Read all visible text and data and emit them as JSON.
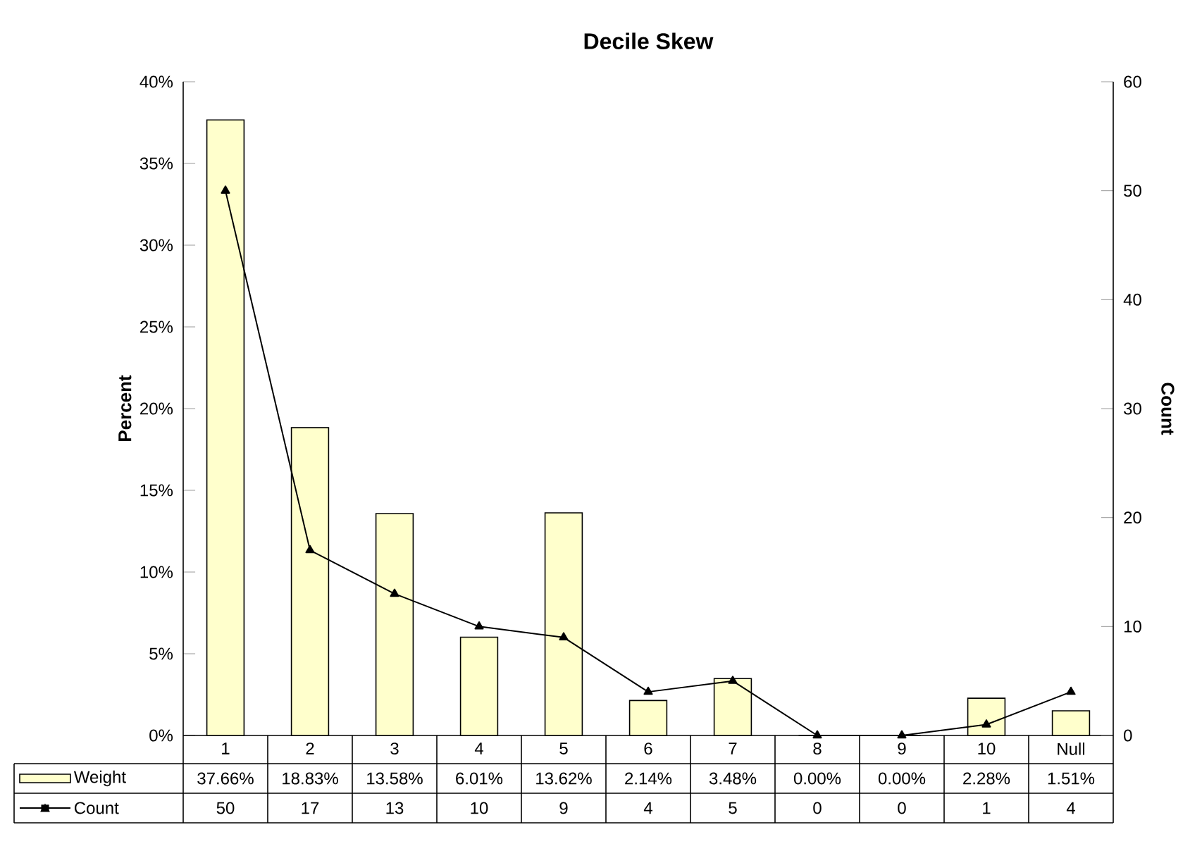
{
  "chart_data": {
    "type": "bar",
    "title": "Decile Skew",
    "ylabel": "Percent",
    "y2label": "Count",
    "categories": [
      "1",
      "2",
      "3",
      "4",
      "5",
      "6",
      "7",
      "8",
      "9",
      "10",
      "Null"
    ],
    "series": [
      {
        "name": "Weight",
        "color": "#ffffcc",
        "values": [
          37.66,
          18.83,
          13.58,
          6.01,
          13.62,
          2.14,
          3.48,
          0.0,
          0.0,
          2.28,
          1.51
        ],
        "value_labels": [
          "37.66%",
          "18.83%",
          "13.58%",
          "6.01%",
          "13.62%",
          "2.14%",
          "3.48%",
          "0.00%",
          "0.00%",
          "2.28%",
          "1.51%"
        ]
      },
      {
        "name": "Count",
        "type": "line",
        "axis": "y2",
        "color": "#000000",
        "values": [
          50,
          17,
          13,
          10,
          9,
          4,
          5,
          0,
          0,
          1,
          4
        ],
        "value_labels": [
          "50",
          "17",
          "13",
          "10",
          "9",
          "4",
          "5",
          "0",
          "0",
          "1",
          "4"
        ]
      }
    ],
    "ylim": [
      0,
      40
    ],
    "yticks": [
      {
        "value": 0,
        "label": "0%"
      },
      {
        "value": 5,
        "label": "5%"
      },
      {
        "value": 10,
        "label": "10%"
      },
      {
        "value": 15,
        "label": "15%"
      },
      {
        "value": 20,
        "label": "20%"
      },
      {
        "value": 25,
        "label": "25%"
      },
      {
        "value": 30,
        "label": "30%"
      },
      {
        "value": 35,
        "label": "35%"
      },
      {
        "value": 40,
        "label": "40%"
      }
    ],
    "y2lim": [
      0,
      60
    ],
    "y2ticks": [
      0,
      10,
      20,
      30,
      40,
      50,
      60
    ],
    "marker": "triangle",
    "legend": "bottom left"
  }
}
